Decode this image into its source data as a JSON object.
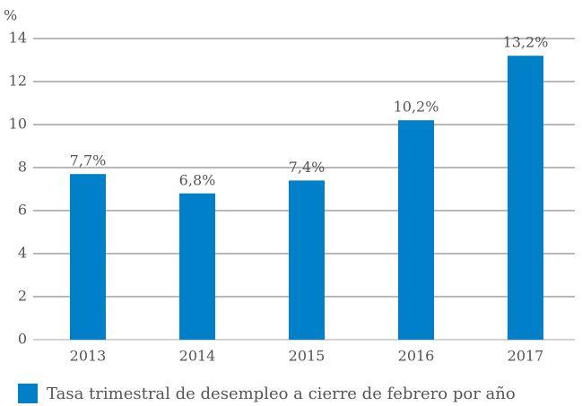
{
  "chart_data": {
    "type": "bar",
    "y_label": "%",
    "categories": [
      "2013",
      "2014",
      "2015",
      "2016",
      "2017"
    ],
    "series": [
      {
        "name": "Tasa trimestral de desempleo a cierre de febrero por año",
        "color": "#0080c8",
        "values": [
          7.7,
          6.8,
          7.4,
          10.2,
          13.2
        ],
        "value_labels": [
          "7,7%",
          "6,8%",
          "7,4%",
          "10,2%",
          "13,2%"
        ]
      }
    ],
    "ylim": [
      0,
      14
    ],
    "yticks": [
      0,
      2,
      4,
      6,
      8,
      10,
      12,
      14
    ],
    "grid": true
  }
}
